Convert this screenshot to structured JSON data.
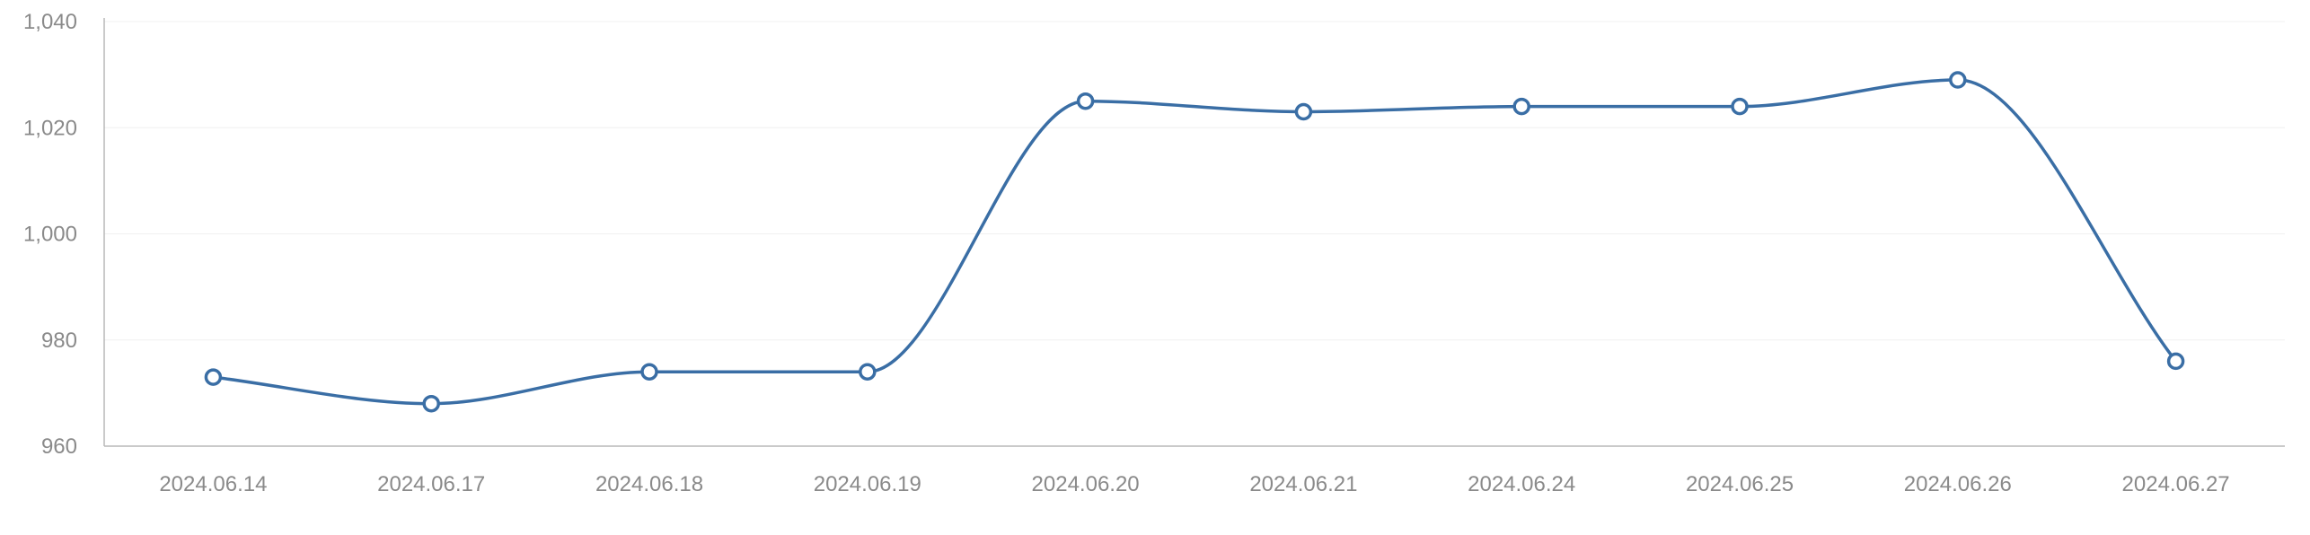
{
  "chart_data": {
    "type": "line",
    "title": "",
    "xlabel": "",
    "ylabel": "",
    "categories": [
      "2024.06.14",
      "2024.06.17",
      "2024.06.18",
      "2024.06.19",
      "2024.06.20",
      "2024.06.21",
      "2024.06.24",
      "2024.06.25",
      "2024.06.26",
      "2024.06.27"
    ],
    "series": [
      {
        "values": [
          973,
          968,
          974,
          974,
          1025,
          1023,
          1024,
          1024,
          1029,
          976
        ]
      }
    ],
    "ylim": [
      960,
      1040
    ],
    "y_ticks": [
      960,
      980,
      1000,
      1020,
      1040
    ],
    "y_tick_labels": [
      "960",
      "980",
      "1,000",
      "1,020",
      "1,040"
    ],
    "grid": "horizontal",
    "smooth": true,
    "colors": {
      "line": "#3a6ea5"
    }
  }
}
